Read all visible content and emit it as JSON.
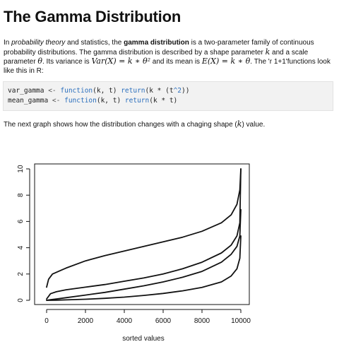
{
  "document": {
    "title": "The Gamma Distribution",
    "intro": {
      "t1": "In ",
      "em1": "probability theory",
      "t2": " and statistics, the ",
      "b1": "gamma distribution",
      "t3": " is a two-parameter family of continuous probability distributions. The gamma distribution is described by a shape parameter ",
      "m_k": "k",
      "t4": " and a scale parameter ",
      "m_theta": "θ",
      "t5": ". Its variance is ",
      "m_var": "Var(X) = k ∗ θ²",
      "t6": " and its mean is ",
      "m_mean": "E(X) = k ∗ θ",
      "t7": ". The 'r 1+1'functions look like this in R:"
    },
    "code": {
      "line1": {
        "name": "var_gamma",
        "assign": " <- ",
        "kw_function": "function",
        "args": "(k, t) ",
        "kw_return": "return",
        "body_open": "(k * (t",
        "power": "^2",
        "body_close": "))"
      },
      "line2": {
        "name": "mean_gamma",
        "assign": " <- ",
        "kw_function": "function",
        "args": "(k, t) ",
        "kw_return": "return",
        "body": "(k * t)"
      }
    },
    "caption": {
      "before": "The next graph shows how the distribution changes with a chaging shape (",
      "k": "k",
      "after": ") value."
    }
  },
  "chart_data": {
    "type": "line",
    "xlabel": "sorted values",
    "ylabel": "",
    "title": "",
    "xlim": [
      0,
      10000
    ],
    "ylim": [
      0,
      10
    ],
    "x_ticks": [
      "0",
      "2000",
      "4000",
      "6000",
      "8000",
      "10000"
    ],
    "y_ticks": [
      "0",
      "2",
      "4",
      "6",
      "8",
      "10"
    ],
    "grid": false,
    "series": [
      {
        "x": [
          1,
          200,
          500,
          1000,
          2000,
          3000,
          4000,
          5000,
          6000,
          7000,
          8000,
          9000,
          9500,
          9800,
          9950,
          10000
        ],
        "y": [
          0.0,
          0.002,
          0.01,
          0.03,
          0.08,
          0.15,
          0.24,
          0.37,
          0.52,
          0.72,
          0.98,
          1.4,
          1.85,
          2.4,
          3.2,
          4.9
        ]
      },
      {
        "x": [
          1,
          200,
          500,
          1000,
          2000,
          3000,
          4000,
          5000,
          6000,
          7000,
          8000,
          9000,
          9500,
          9800,
          9950,
          10000
        ],
        "y": [
          0.0,
          0.05,
          0.1,
          0.2,
          0.4,
          0.6,
          0.85,
          1.1,
          1.4,
          1.75,
          2.2,
          2.9,
          3.5,
          4.1,
          4.9,
          6.9
        ]
      },
      {
        "x": [
          1,
          200,
          500,
          1000,
          2000,
          3000,
          4000,
          5000,
          6000,
          7000,
          8000,
          9000,
          9500,
          9800,
          9950,
          10000
        ],
        "y": [
          0.1,
          0.5,
          0.65,
          0.8,
          1.0,
          1.2,
          1.45,
          1.7,
          2.0,
          2.4,
          2.9,
          3.6,
          4.2,
          4.9,
          5.9,
          10.0
        ]
      },
      {
        "x": [
          1,
          100,
          300,
          1000,
          2000,
          3000,
          4000,
          5000,
          6000,
          7000,
          8000,
          9000,
          9500,
          9800,
          9950,
          10000
        ],
        "y": [
          1.0,
          1.6,
          2.0,
          2.45,
          3.0,
          3.4,
          3.75,
          4.1,
          4.45,
          4.8,
          5.25,
          5.9,
          6.5,
          7.3,
          8.4,
          10.0
        ]
      }
    ]
  }
}
